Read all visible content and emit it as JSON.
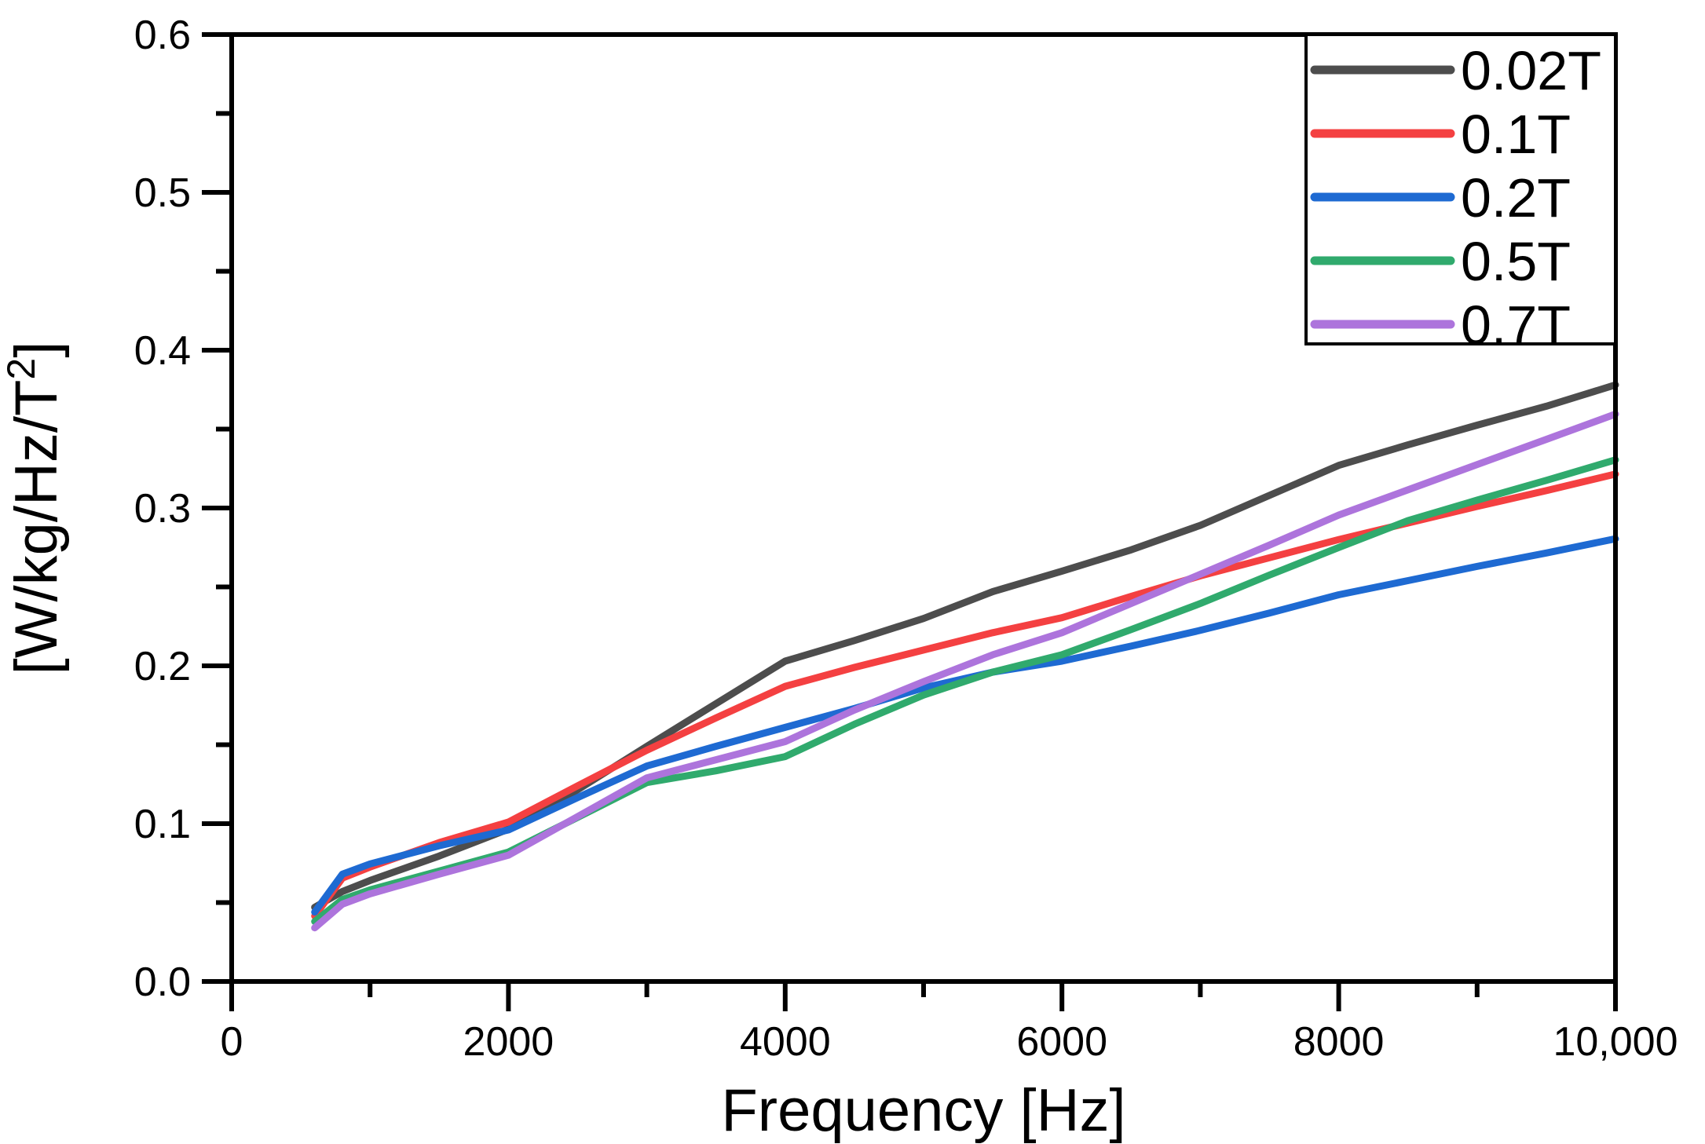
{
  "page": {
    "background": "#ffffff",
    "text_color": "#000000"
  },
  "chart_data": {
    "type": "line",
    "title": "",
    "xlabel": "Frequency [Hz]",
    "ylabel": "[W/kg/Hz/T²]",
    "ylabel_parts": [
      "[W/kg/Hz/T",
      "2",
      "]"
    ],
    "xlim": [
      0,
      10000
    ],
    "ylim": [
      0.0,
      0.6
    ],
    "x_major_ticks": [
      0,
      2000,
      4000,
      6000,
      8000,
      10000
    ],
    "x_tick_labels": [
      "0",
      "2000",
      "4000",
      "6000",
      "8000",
      "10,000"
    ],
    "x_minor_ticks": [
      1000,
      3000,
      5000,
      7000,
      9000
    ],
    "y_major_ticks": [
      0.0,
      0.1,
      0.2,
      0.3,
      0.4,
      0.5,
      0.6
    ],
    "y_tick_labels": [
      "0.0",
      "0.1",
      "0.2",
      "0.3",
      "0.4",
      "0.5",
      "0.6"
    ],
    "y_minor_ticks": [
      0.05,
      0.15,
      0.25,
      0.35,
      0.45,
      0.55
    ],
    "grid": false,
    "axis_color": "#000000",
    "plot_border": true,
    "legend": {
      "position": "top-right",
      "entries": [
        "0.02T",
        "0.1T",
        "0.2T",
        "0.5T",
        "0.7T"
      ]
    },
    "series": [
      {
        "name": "0.02T",
        "color": "#4d4d4d",
        "points": [
          [
            600,
            0.047
          ],
          [
            800,
            0.057
          ],
          [
            1000,
            0.064
          ],
          [
            1500,
            0.0795
          ],
          [
            2000,
            0.0965
          ],
          [
            2500,
            0.1215
          ],
          [
            3000,
            0.149
          ],
          [
            3500,
            0.176
          ],
          [
            4000,
            0.203
          ],
          [
            4500,
            0.216
          ],
          [
            5000,
            0.23
          ],
          [
            5500,
            0.247
          ],
          [
            6000,
            0.26
          ],
          [
            6500,
            0.2735
          ],
          [
            7000,
            0.289
          ],
          [
            7500,
            0.308
          ],
          [
            8000,
            0.327
          ],
          [
            8500,
            0.34
          ],
          [
            9000,
            0.3525
          ],
          [
            9500,
            0.3645
          ],
          [
            10000,
            0.378
          ]
        ]
      },
      {
        "name": "0.1T",
        "color": "#f44041",
        "points": [
          [
            600,
            0.0415
          ],
          [
            800,
            0.0655
          ],
          [
            1000,
            0.0725
          ],
          [
            1500,
            0.088
          ],
          [
            2000,
            0.101
          ],
          [
            2500,
            0.124
          ],
          [
            3000,
            0.1465
          ],
          [
            3500,
            0.167
          ],
          [
            4000,
            0.187
          ],
          [
            4500,
            0.199
          ],
          [
            5000,
            0.21
          ],
          [
            5500,
            0.221
          ],
          [
            6000,
            0.2305
          ],
          [
            6500,
            0.244
          ],
          [
            7000,
            0.257
          ],
          [
            7500,
            0.2685
          ],
          [
            8000,
            0.28
          ],
          [
            8500,
            0.2905
          ],
          [
            9000,
            0.301
          ],
          [
            9500,
            0.311
          ],
          [
            10000,
            0.3215
          ]
        ]
      },
      {
        "name": "0.2T",
        "color": "#1e6ad2",
        "points": [
          [
            600,
            0.044
          ],
          [
            800,
            0.068
          ],
          [
            1000,
            0.0745
          ],
          [
            1500,
            0.086
          ],
          [
            2000,
            0.096
          ],
          [
            2500,
            0.1165
          ],
          [
            3000,
            0.1365
          ],
          [
            3500,
            0.149
          ],
          [
            4000,
            0.161
          ],
          [
            4500,
            0.173
          ],
          [
            5000,
            0.186
          ],
          [
            5500,
            0.196
          ],
          [
            6000,
            0.203
          ],
          [
            6500,
            0.2125
          ],
          [
            7000,
            0.2225
          ],
          [
            7500,
            0.2335
          ],
          [
            8000,
            0.245
          ],
          [
            8500,
            0.254
          ],
          [
            9000,
            0.263
          ],
          [
            9500,
            0.2715
          ],
          [
            10000,
            0.2805
          ]
        ]
      },
      {
        "name": "0.5T",
        "color": "#30aa6d",
        "points": [
          [
            600,
            0.038
          ],
          [
            800,
            0.052
          ],
          [
            1000,
            0.058
          ],
          [
            1500,
            0.07
          ],
          [
            2000,
            0.082
          ],
          [
            2500,
            0.104
          ],
          [
            3000,
            0.126
          ],
          [
            3500,
            0.1335
          ],
          [
            4000,
            0.1425
          ],
          [
            4500,
            0.163
          ],
          [
            5000,
            0.1815
          ],
          [
            5500,
            0.196
          ],
          [
            6000,
            0.207
          ],
          [
            6500,
            0.223
          ],
          [
            7000,
            0.2395
          ],
          [
            7500,
            0.2575
          ],
          [
            8000,
            0.275
          ],
          [
            8500,
            0.292
          ],
          [
            9000,
            0.305
          ],
          [
            9500,
            0.3175
          ],
          [
            10000,
            0.3305
          ]
        ]
      },
      {
        "name": "0.7T",
        "color": "#ad74dc",
        "points": [
          [
            600,
            0.034
          ],
          [
            800,
            0.049
          ],
          [
            1000,
            0.0555
          ],
          [
            1500,
            0.068
          ],
          [
            2000,
            0.08
          ],
          [
            2500,
            0.1045
          ],
          [
            3000,
            0.129
          ],
          [
            3500,
            0.1405
          ],
          [
            4000,
            0.152
          ],
          [
            4500,
            0.172
          ],
          [
            5000,
            0.19
          ],
          [
            5500,
            0.207
          ],
          [
            6000,
            0.221
          ],
          [
            6500,
            0.2395
          ],
          [
            7000,
            0.258
          ],
          [
            7500,
            0.2765
          ],
          [
            8000,
            0.2955
          ],
          [
            8500,
            0.3115
          ],
          [
            9000,
            0.3275
          ],
          [
            9500,
            0.3435
          ],
          [
            10000,
            0.3595
          ]
        ]
      }
    ]
  }
}
